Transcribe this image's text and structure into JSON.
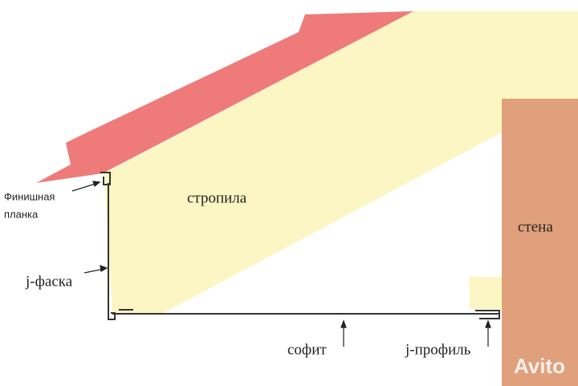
{
  "labels": {
    "finish_strip_line1": "Финишная",
    "finish_strip_line2": "планка",
    "rafters": "стропила",
    "j_chamfer": "j-фаска",
    "wall": "стена",
    "soffit": "софит",
    "j_profile": "j-профиль",
    "watermark": "Avito"
  }
}
